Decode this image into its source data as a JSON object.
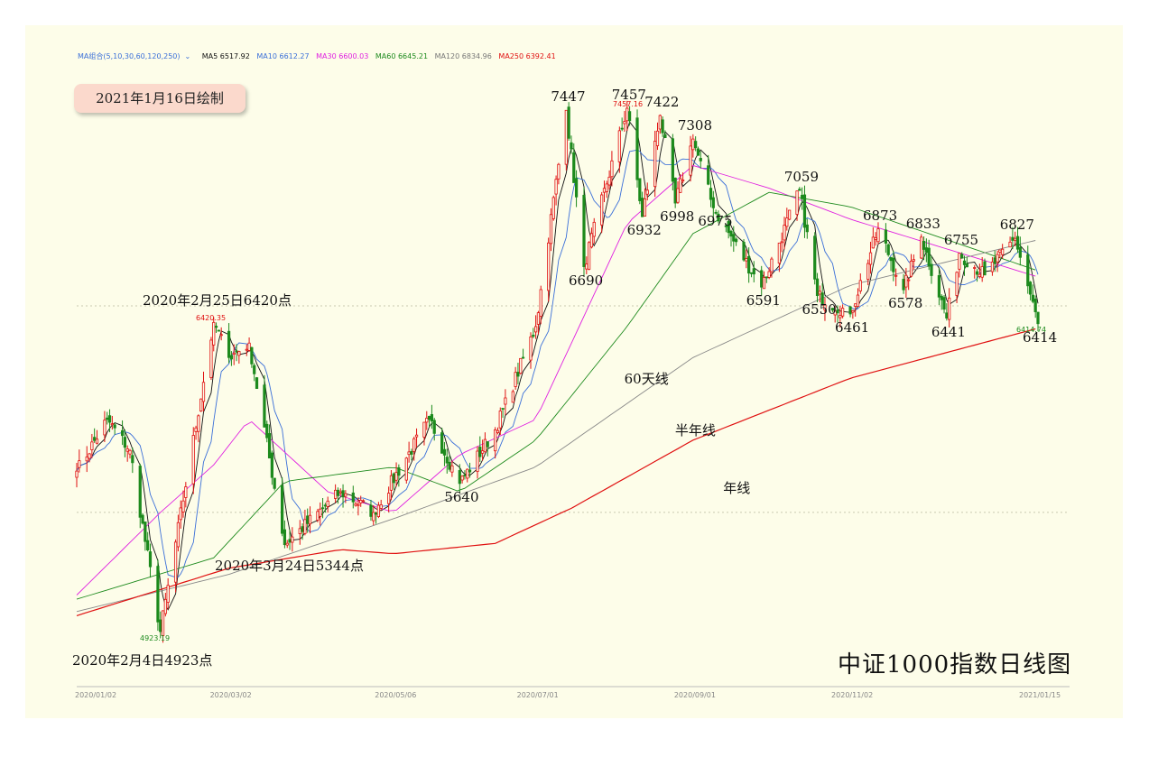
{
  "legend": {
    "combo": "MA组合(5,10,30,60,120,250)",
    "ma5": "MA5 6517.92",
    "ma10": "MA10 6612.27",
    "ma30": "MA30 6600.03",
    "ma60": "MA60 6645.21",
    "ma120": "MA120 6834.96",
    "ma250": "MA250 6392.41"
  },
  "badge": "2021年1月16日绘制",
  "colors": {
    "up": "#e01010",
    "down": "#1d8a1d",
    "ma5": "#111111",
    "ma10": "#3a6fd8",
    "ma30": "#e020e0",
    "ma60": "#1d8a1d",
    "ma120": "#888888",
    "ma250": "#e01010",
    "background": "#fdfde9",
    "badge": "#fbd9cc"
  },
  "chart_data": {
    "type": "candlestick",
    "title": "中证1000指数日线图",
    "high_label": "7457.16",
    "feb_high_label": "6420.35",
    "low_label": "4923.19",
    "last_label": "6414.74",
    "x_ticks": [
      "2020/01/02",
      "2020/03/02",
      "2020/05/06",
      "2020/07/01",
      "2020/09/01",
      "2020/11/02",
      "2021/01/15"
    ],
    "anchors": [
      {
        "date": "2020/01/02",
        "value": 5700
      },
      {
        "date": "2020/01/14",
        "value": 5950
      },
      {
        "date": "2020/01/23",
        "value": 5800
      },
      {
        "date": "2020/02/04",
        "value": 4923
      },
      {
        "date": "2020/02/25",
        "value": 6420
      },
      {
        "date": "2020/03/02",
        "value": 6250
      },
      {
        "date": "2020/03/10",
        "value": 6320
      },
      {
        "date": "2020/03/24",
        "value": 5344
      },
      {
        "date": "2020/04/15",
        "value": 5600
      },
      {
        "date": "2020/04/28",
        "value": 5500
      },
      {
        "date": "2020/05/20",
        "value": 5950
      },
      {
        "date": "2020/06/01",
        "value": 5640
      },
      {
        "date": "2020/06/15",
        "value": 5900
      },
      {
        "date": "2020/07/01",
        "value": 6400
      },
      {
        "date": "2020/07/13",
        "value": 7447
      },
      {
        "date": "2020/07/20",
        "value": 6690
      },
      {
        "date": "2020/08/06",
        "value": 7457
      },
      {
        "date": "2020/08/12",
        "value": 6932
      },
      {
        "date": "2020/08/19",
        "value": 7422
      },
      {
        "date": "2020/08/25",
        "value": 6998
      },
      {
        "date": "2020/09/01",
        "value": 7308
      },
      {
        "date": "2020/09/09",
        "value": 6975
      },
      {
        "date": "2020/09/28",
        "value": 6591
      },
      {
        "date": "2020/10/13",
        "value": 7059
      },
      {
        "date": "2020/10/20",
        "value": 6550
      },
      {
        "date": "2020/11/02",
        "value": 6461
      },
      {
        "date": "2020/11/13",
        "value": 6873
      },
      {
        "date": "2020/11/23",
        "value": 6578
      },
      {
        "date": "2020/11/30",
        "value": 6833
      },
      {
        "date": "2020/12/10",
        "value": 6441
      },
      {
        "date": "2020/12/15",
        "value": 6755
      },
      {
        "date": "2020/12/25",
        "value": 6650
      },
      {
        "date": "2021/01/06",
        "value": 6827
      },
      {
        "date": "2021/01/15",
        "value": 6414
      }
    ],
    "ma_lines": {
      "ma30": {
        "dates": [
          "2020/01/02",
          "2020/02/04",
          "2020/02/25",
          "2020/03/10",
          "2020/04/10",
          "2020/05/06",
          "2020/06/01",
          "2020/07/01",
          "2020/07/20",
          "2020/08/06",
          "2020/09/01",
          "2020/10/01",
          "2020/11/02",
          "2021/01/15"
        ],
        "values": [
          5100,
          5500,
          5730,
          5950,
          5600,
          5500,
          5780,
          5950,
          6450,
          6900,
          7180,
          7070,
          6920,
          6640
        ]
      },
      "ma60": {
        "dates": [
          "2020/01/02",
          "2020/02/25",
          "2020/03/24",
          "2020/05/06",
          "2020/06/01",
          "2020/07/01",
          "2020/08/06",
          "2020/09/01",
          "2020/10/01",
          "2020/11/02",
          "2021/01/15"
        ],
        "values": [
          5080,
          5280,
          5650,
          5720,
          5600,
          5850,
          6400,
          6850,
          7050,
          6980,
          6670
        ]
      },
      "ma120": {
        "dates": [
          "2020/01/02",
          "2020/03/02",
          "2020/05/06",
          "2020/07/01",
          "2020/09/01",
          "2020/11/02",
          "2021/01/15"
        ],
        "values": [
          5020,
          5200,
          5470,
          5720,
          6250,
          6600,
          6820
        ]
      },
      "ma250": {
        "dates": [
          "2020/01/02",
          "2020/03/02",
          "2020/04/15",
          "2020/05/06",
          "2020/06/15",
          "2020/07/15",
          "2020/09/01",
          "2020/11/02",
          "2021/01/15"
        ],
        "values": [
          5000,
          5230,
          5320,
          5300,
          5350,
          5520,
          5850,
          6150,
          6392
        ]
      }
    },
    "annotations": [
      {
        "text": "7447",
        "date": "2020/07/13",
        "value": 7447,
        "pos": "above"
      },
      {
        "text": "7457",
        "date": "2020/08/06",
        "value": 7457,
        "pos": "above"
      },
      {
        "text": "7422",
        "date": "2020/08/19",
        "value": 7422,
        "pos": "above"
      },
      {
        "text": "7308",
        "date": "2020/09/01",
        "value": 7308,
        "pos": "above"
      },
      {
        "text": "6690",
        "date": "2020/07/20",
        "value": 6690,
        "pos": "below"
      },
      {
        "text": "6932",
        "date": "2020/08/12",
        "value": 6932,
        "pos": "below"
      },
      {
        "text": "6998",
        "date": "2020/08/25",
        "value": 6998,
        "pos": "below"
      },
      {
        "text": "6975",
        "date": "2020/09/09",
        "value": 6975,
        "pos": "below"
      },
      {
        "text": "7059",
        "date": "2020/10/13",
        "value": 7059,
        "pos": "above"
      },
      {
        "text": "6591",
        "date": "2020/09/28",
        "value": 6591,
        "pos": "below"
      },
      {
        "text": "6550",
        "date": "2020/10/20",
        "value": 6550,
        "pos": "below"
      },
      {
        "text": "6461",
        "date": "2020/11/02",
        "value": 6461,
        "pos": "below"
      },
      {
        "text": "6873",
        "date": "2020/11/13",
        "value": 6873,
        "pos": "above"
      },
      {
        "text": "6578",
        "date": "2020/11/23",
        "value": 6578,
        "pos": "below"
      },
      {
        "text": "6833",
        "date": "2020/11/30",
        "value": 6833,
        "pos": "above"
      },
      {
        "text": "6441",
        "date": "2020/12/10",
        "value": 6441,
        "pos": "below"
      },
      {
        "text": "6755",
        "date": "2020/12/15",
        "value": 6755,
        "pos": "above"
      },
      {
        "text": "6827",
        "date": "2021/01/06",
        "value": 6827,
        "pos": "above"
      },
      {
        "text": "6414",
        "date": "2021/01/15",
        "value": 6414,
        "pos": "below"
      },
      {
        "text": "5640",
        "date": "2020/06/01",
        "value": 5640,
        "pos": "below"
      }
    ],
    "notes": [
      {
        "text": "2020年2月25日6420点",
        "date": "2020/02/25",
        "value": 6420
      },
      {
        "text": "2020年3月24日5344点",
        "date": "2020/03/24",
        "value": 5344
      },
      {
        "text": "2020年2月4日4923点",
        "date": "2020/02/04",
        "value": 4923
      },
      {
        "text": "60天线",
        "date": "2020/08/12",
        "value": 6150
      },
      {
        "text": "半年线",
        "date": "2020/09/01",
        "value": 5900
      },
      {
        "text": "年线",
        "date": "2020/09/20",
        "value": 5620
      }
    ]
  }
}
